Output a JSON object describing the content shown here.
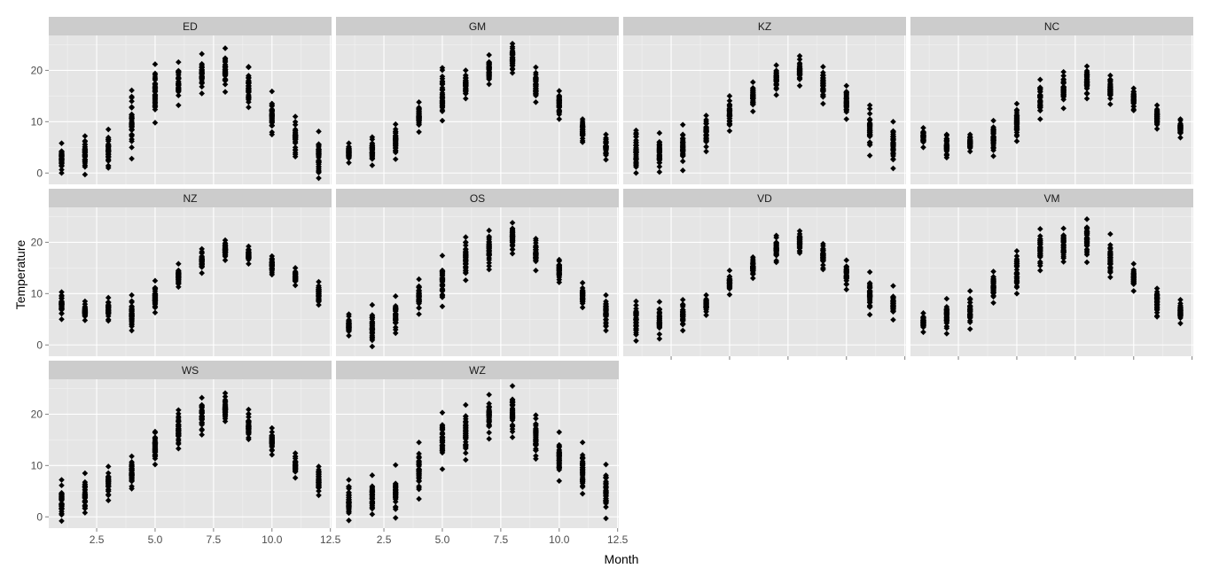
{
  "chart_data": {
    "type": "scatter",
    "xlabel": "Month",
    "ylabel": "Temperature",
    "xlim": [
      0.45,
      12.55
    ],
    "ylim": [
      -2.2,
      26.8
    ],
    "x_ticks": [
      2.5,
      5.0,
      7.5,
      10.0,
      12.5
    ],
    "x_tick_labels": [
      "2.5",
      "5.0",
      "7.5",
      "10.0",
      "12.5"
    ],
    "y_ticks": [
      0,
      10,
      20
    ],
    "y_tick_labels": [
      "0",
      "10",
      "20"
    ],
    "grid": true,
    "legend": "none",
    "layout": "facet_wrap, 4 columns, 3 rows",
    "point_color": "#000000",
    "panel_background": "#e5e5e5",
    "strip_background": "#cccccc",
    "months": [
      1,
      2,
      3,
      4,
      5,
      6,
      7,
      8,
      9,
      10,
      11,
      12
    ],
    "panels": [
      {
        "name": "ED",
        "min": [
          0,
          -0.3,
          1,
          2.8,
          9.8,
          13.2,
          15.5,
          15.8,
          12.8,
          7.5,
          3.2,
          -1
        ],
        "max": [
          5.8,
          7.2,
          8.5,
          16.1,
          21.2,
          21.6,
          23.2,
          24.3,
          20.7,
          15.9,
          11,
          8.1
        ]
      },
      {
        "name": "GM",
        "min": [
          2,
          1.5,
          2.7,
          8,
          10.2,
          14.5,
          17.3,
          19.5,
          13.8,
          10.5,
          6,
          2.6
        ],
        "max": [
          5.8,
          7,
          9.5,
          13.8,
          20.5,
          20,
          23,
          25.2,
          20.6,
          16,
          10.5,
          7.5
        ]
      },
      {
        "name": "KZ",
        "min": [
          0,
          0.2,
          0.5,
          4.2,
          8.2,
          12,
          15.2,
          17,
          13.5,
          10.5,
          3.4,
          0.9
        ],
        "max": [
          8.3,
          7.8,
          9.4,
          11.2,
          15,
          17.7,
          21,
          22.8,
          20.7,
          17,
          13.2,
          10
        ]
      },
      {
        "name": "NC",
        "min": [
          5,
          3,
          4.2,
          3.3,
          6.2,
          10.5,
          12.6,
          14.5,
          13.4,
          12.2,
          8.6,
          6.9
        ],
        "max": [
          8.8,
          7.5,
          7.5,
          10.2,
          13.5,
          18.2,
          19.7,
          20.8,
          19,
          16.5,
          13.2,
          10.5
        ]
      },
      {
        "name": "NZ",
        "min": [
          5,
          4.8,
          4.7,
          2.8,
          6.3,
          11.3,
          14,
          16.5,
          15.8,
          13.7,
          11.6,
          7.8
        ],
        "max": [
          10.3,
          8.5,
          9.2,
          9.7,
          12.5,
          15.8,
          18.7,
          20.4,
          19.2,
          17.3,
          15,
          12.3
        ]
      },
      {
        "name": "OS",
        "min": [
          1.8,
          -0.3,
          2.3,
          6,
          7.5,
          12.6,
          14.7,
          17.8,
          14.5,
          12.2,
          7.3,
          2.8
        ],
        "max": [
          6,
          7.8,
          9.5,
          12.8,
          17.4,
          21,
          22.3,
          23.8,
          20.7,
          16.6,
          12.1,
          9.7
        ]
      },
      {
        "name": "VD",
        "min": [
          0.8,
          1.2,
          2.8,
          5.8,
          9.8,
          13,
          16.1,
          17.9,
          14.7,
          10.8,
          5.9,
          4.9
        ],
        "max": [
          8.5,
          8.4,
          8.8,
          9.7,
          14.5,
          17.1,
          21.3,
          22.2,
          19.7,
          16.5,
          14.2,
          11.5
        ]
      },
      {
        "name": "VM",
        "min": [
          2.5,
          2.2,
          3.1,
          8.2,
          10,
          14.5,
          16.2,
          16.1,
          13.2,
          10.5,
          5.5,
          4.2
        ],
        "max": [
          6.2,
          9,
          10.5,
          14.3,
          18.3,
          22.6,
          22.7,
          24.5,
          21.6,
          15.8,
          11,
          8.8
        ]
      },
      {
        "name": "WS",
        "min": [
          -0.8,
          0.8,
          3.2,
          5.5,
          10.2,
          13.3,
          16,
          18.6,
          15.1,
          12.1,
          7.6,
          4.2
        ],
        "max": [
          7.2,
          8.5,
          9.8,
          11.8,
          16.6,
          20.8,
          23.2,
          24.1,
          20.9,
          17.3,
          12.4,
          9.8
        ]
      },
      {
        "name": "WZ",
        "min": [
          -0.7,
          0.5,
          -0.2,
          3.5,
          9.3,
          11.1,
          15.2,
          15.5,
          11.3,
          7,
          4.5,
          -0.3
        ],
        "max": [
          7.2,
          8.1,
          10.1,
          14.5,
          20.3,
          21.8,
          23.8,
          25.5,
          19.8,
          16.5,
          14.5,
          10.2
        ]
      }
    ]
  }
}
